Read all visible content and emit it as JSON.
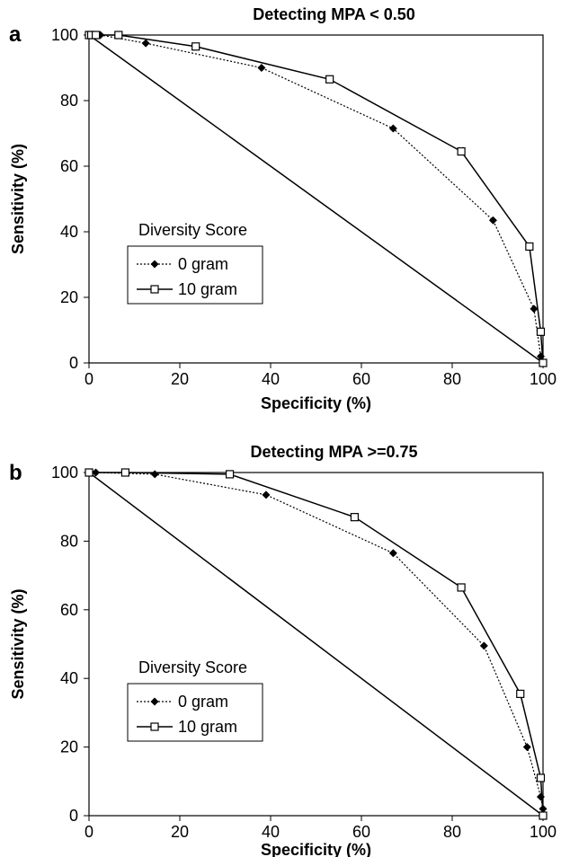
{
  "chart_data": [
    {
      "panel_label": "a",
      "type": "line",
      "title": "Detecting MPA < 0.50",
      "xlabel": "Specificity (%)",
      "ylabel": "Sensitivity (%)",
      "xlim": [
        0,
        100
      ],
      "ylim": [
        0,
        100
      ],
      "x_ticks": [
        0,
        20,
        40,
        60,
        80,
        100
      ],
      "y_ticks": [
        0,
        20,
        40,
        60,
        80,
        100
      ],
      "grid": false,
      "legend": {
        "title": "Diversity Score",
        "position": "lower-left"
      },
      "reference_line": {
        "x": [
          0,
          100
        ],
        "y": [
          100,
          0
        ]
      },
      "series": [
        {
          "name": "0 gram",
          "marker": "filled-diamond",
          "line": "dotted",
          "x": [
            0,
            0.5,
            1,
            1.5,
            2.5,
            12.5,
            38,
            67,
            89,
            98,
            99.5
          ],
          "y": [
            100,
            100,
            100,
            100,
            100,
            97.5,
            90,
            71.5,
            43.5,
            16.5,
            2
          ]
        },
        {
          "name": "10 gram",
          "marker": "open-square",
          "line": "solid",
          "x": [
            0,
            0.5,
            1.5,
            6.5,
            23.5,
            53,
            82,
            97,
            99.5,
            100
          ],
          "y": [
            100,
            100,
            100,
            100,
            96.5,
            86.5,
            64.5,
            35.5,
            9.5,
            0
          ]
        }
      ]
    },
    {
      "panel_label": "b",
      "type": "line",
      "title": "Detecting MPA >=0.75",
      "xlabel": "Specificity (%)",
      "ylabel": "Sensitivity (%)",
      "xlim": [
        0,
        100
      ],
      "ylim": [
        0,
        100
      ],
      "x_ticks": [
        0,
        20,
        40,
        60,
        80,
        100
      ],
      "y_ticks": [
        0,
        20,
        40,
        60,
        80,
        100
      ],
      "grid": false,
      "legend": {
        "title": "Diversity Score",
        "position": "lower-left"
      },
      "reference_line": {
        "x": [
          0,
          100
        ],
        "y": [
          100,
          0
        ]
      },
      "series": [
        {
          "name": "0 gram",
          "marker": "filled-diamond",
          "line": "dotted",
          "x": [
            0,
            1.5,
            14.5,
            39,
            67,
            87,
            96.5,
            99.5,
            100
          ],
          "y": [
            100,
            100,
            99.5,
            93.5,
            76.5,
            49.5,
            20,
            5.5,
            2
          ]
        },
        {
          "name": "10 gram",
          "marker": "open-square",
          "line": "solid",
          "x": [
            0,
            8,
            31,
            58.5,
            82,
            95,
            99.5,
            100
          ],
          "y": [
            100,
            100,
            99.5,
            87,
            66.5,
            35.5,
            11,
            0
          ]
        }
      ]
    }
  ]
}
